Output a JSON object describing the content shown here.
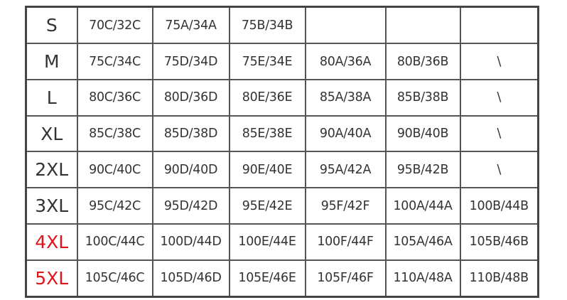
{
  "colors": {
    "text": "#333333",
    "highlight": "#e0141b",
    "border": "#444444"
  },
  "rows": [
    {
      "size": "S",
      "highlight": false,
      "cells": [
        "70C/32C",
        "75A/34A",
        "75B/34B",
        "",
        "",
        ""
      ]
    },
    {
      "size": "M",
      "highlight": false,
      "cells": [
        "75C/34C",
        "75D/34D",
        "75E/34E",
        "80A/36A",
        "80B/36B",
        "\\"
      ]
    },
    {
      "size": "L",
      "highlight": false,
      "cells": [
        "80C/36C",
        "80D/36D",
        "80E/36E",
        "85A/38A",
        "85B/38B",
        "\\"
      ]
    },
    {
      "size": "XL",
      "highlight": false,
      "cells": [
        "85C/38C",
        "85D/38D",
        "85E/38E",
        "90A/40A",
        "90B/40B",
        "\\"
      ]
    },
    {
      "size": "2XL",
      "highlight": false,
      "cells": [
        "90C/40C",
        "90D/40D",
        "90E/40E",
        "95A/42A",
        "95B/42B",
        "\\"
      ]
    },
    {
      "size": "3XL",
      "highlight": false,
      "cells": [
        "95C/42C",
        "95D/42D",
        "95E/42E",
        "95F/42F",
        "100A/44A",
        "100B/44B"
      ]
    },
    {
      "size": "4XL",
      "highlight": true,
      "cells": [
        "100C/44C",
        "100D/44D",
        "100E/44E",
        "100F/44F",
        "105A/46A",
        "105B/46B"
      ]
    },
    {
      "size": "5XL",
      "highlight": true,
      "cells": [
        "105C/46C",
        "105D/46D",
        "105E/46E",
        "105F/46F",
        "110A/48A",
        "110B/48B"
      ]
    }
  ]
}
